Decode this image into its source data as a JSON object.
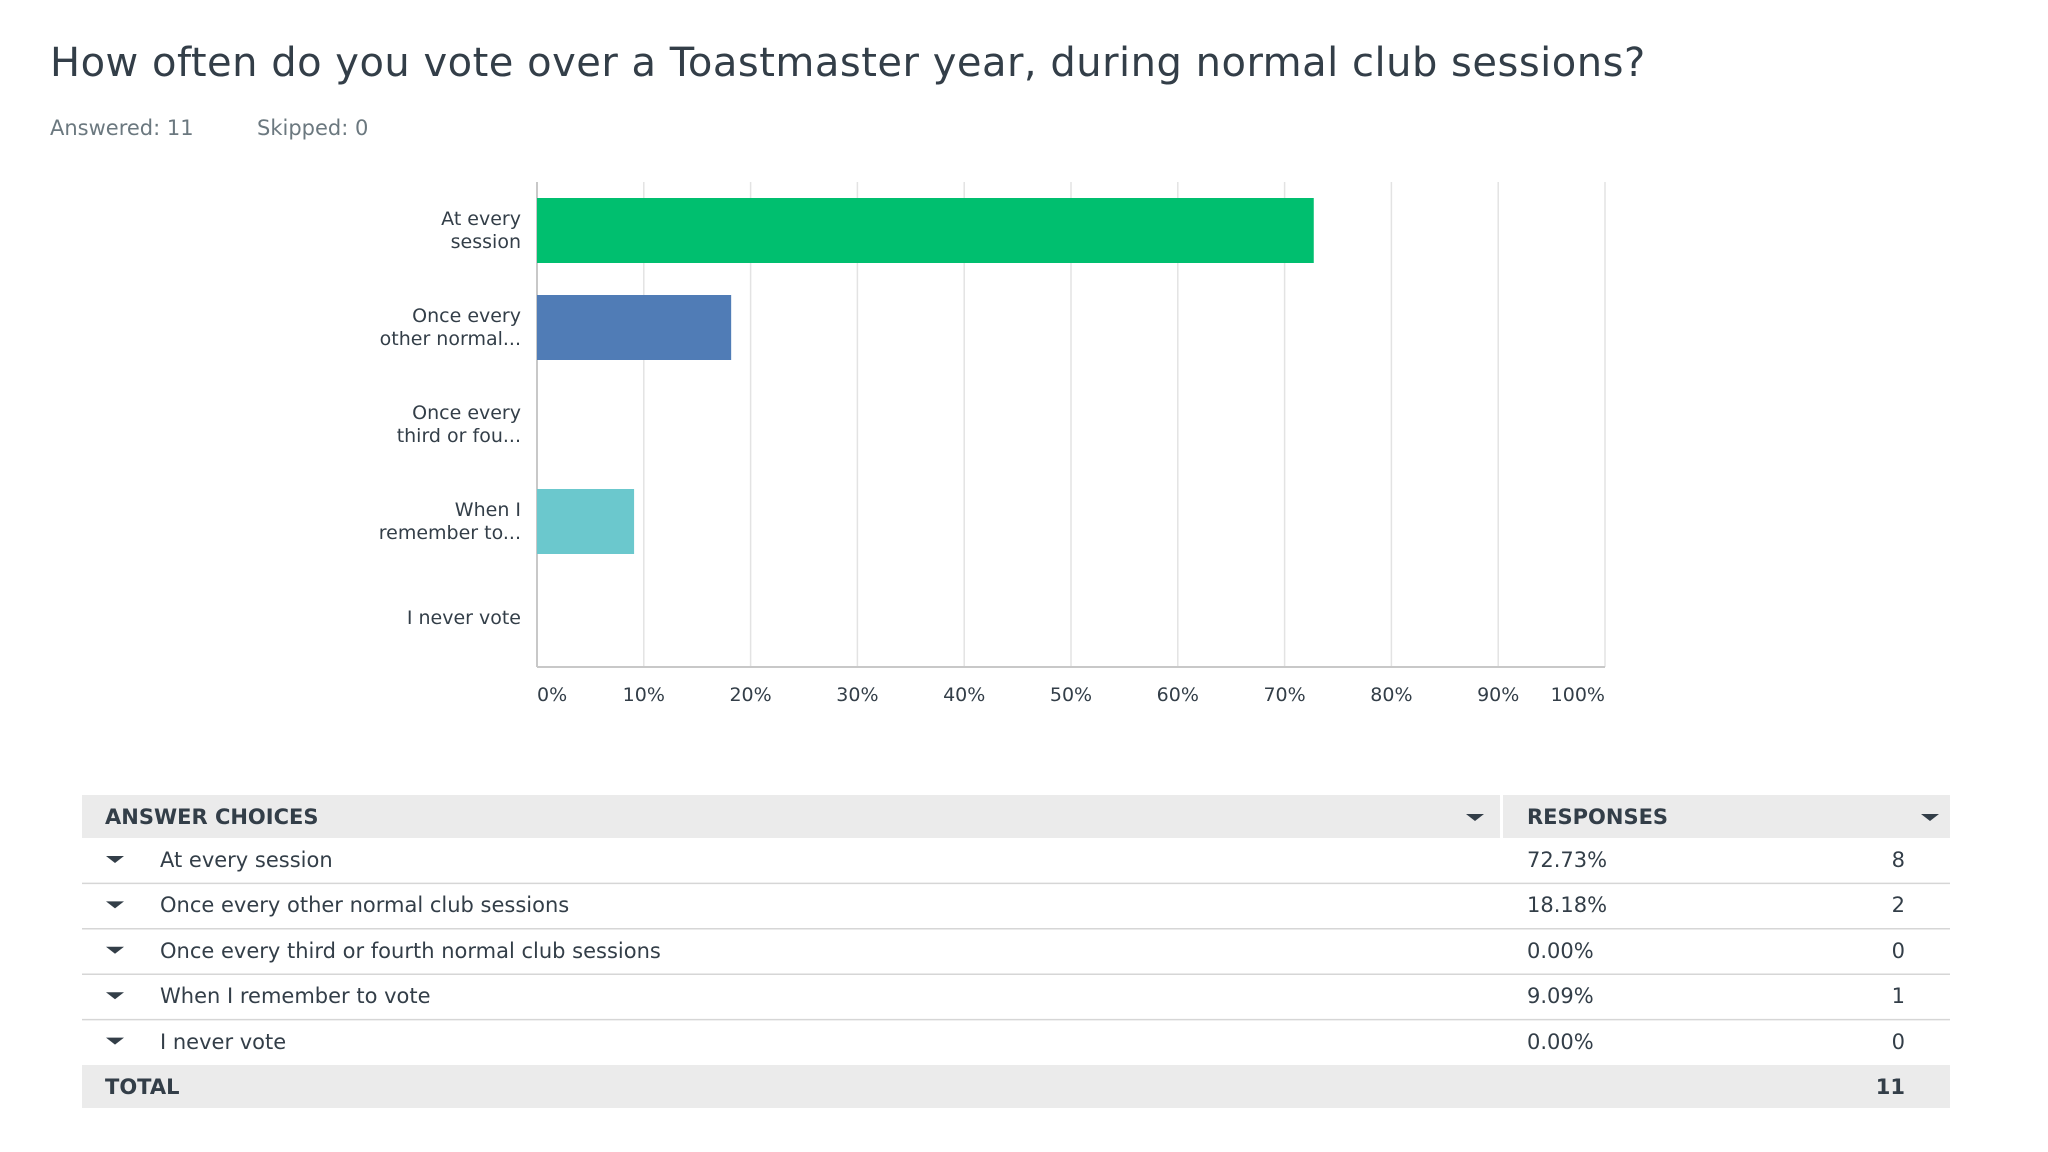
{
  "header": {
    "title": "How often do you vote over a Toastmaster year, during normal club sessions?",
    "answered": "Answered: 11",
    "skipped": "Skipped: 0"
  },
  "chart_data": {
    "type": "hbar",
    "categories": [
      "At every session",
      "Once every other normal...",
      "Once every third or fou...",
      "When I remember to...",
      "I never vote"
    ],
    "values": [
      72.73,
      18.18,
      0,
      9.09,
      0
    ],
    "colors": [
      "#00bf6f",
      "#507cb6",
      "#f9be00",
      "#6bc8cd",
      "#ff8b4f"
    ],
    "xlim": [
      0,
      100
    ],
    "xticks": [
      {
        "value": 0,
        "label": "0%"
      },
      {
        "value": 10,
        "label": "10%"
      },
      {
        "value": 20,
        "label": "20%"
      },
      {
        "value": 30,
        "label": "30%"
      },
      {
        "value": 40,
        "label": "40%"
      },
      {
        "value": 50,
        "label": "50%"
      },
      {
        "value": 60,
        "label": "60%"
      },
      {
        "value": 70,
        "label": "70%"
      },
      {
        "value": 80,
        "label": "80%"
      },
      {
        "value": 90,
        "label": "90%"
      },
      {
        "value": 100,
        "label": "100%"
      }
    ],
    "grid": true
  },
  "table": {
    "header": [
      "ANSWER CHOICES",
      "RESPONSES"
    ],
    "rows": [
      [
        "At every session",
        "72.73%",
        8
      ],
      [
        "Once every other normal club sessions",
        "18.18%",
        2
      ],
      [
        "Once every third or fourth normal club sessions",
        "0.00%",
        0
      ],
      [
        "When I remember to vote",
        "9.09%",
        1
      ],
      [
        "I never vote",
        "0.00%",
        0
      ]
    ],
    "total": [
      "TOTAL",
      11
    ]
  }
}
